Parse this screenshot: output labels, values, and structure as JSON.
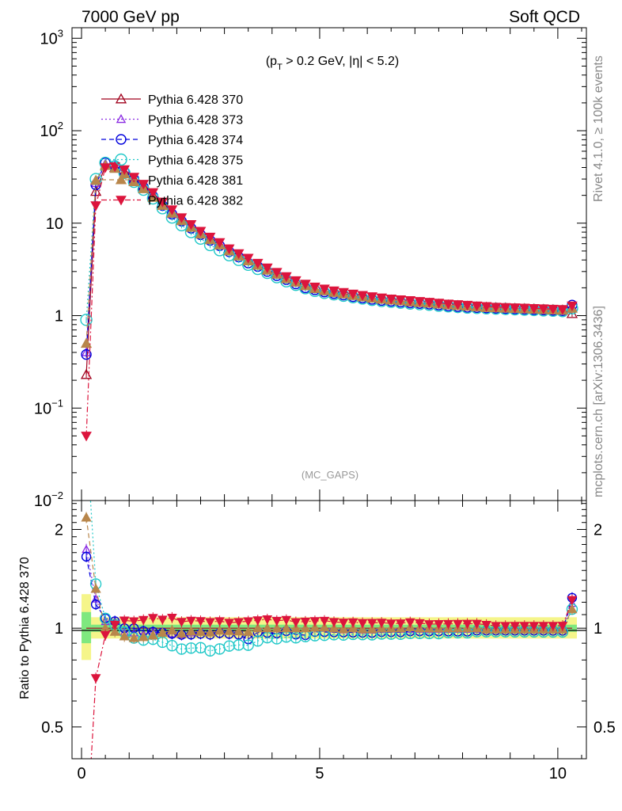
{
  "header": {
    "left": "7000 GeV pp",
    "right": "Soft QCD"
  },
  "side_labels": {
    "rivet": "Rivet 4.1.0, ≥ 100k events",
    "mcplots": "mcplots.cern.ch [arXiv:1306.3436]"
  },
  "colors": {
    "370": "#a0001c",
    "373": "#8a2be2",
    "374": "#0000dd",
    "375": "#20c8c8",
    "381": "#b8864b",
    "382": "#dc143c",
    "band_inner": "#7fe87f",
    "band_outer": "#f5f58a"
  },
  "chart_data": [
    {
      "type": "line",
      "title": "(pT > 0.2 GeV, |η| < 5.2)",
      "title_parts": {
        "open": "(p",
        "sub": "T",
        "rest": " > 0.2 GeV, |η| < 5.2)"
      },
      "watermark": "(MC_GAPS)",
      "xlabel": "",
      "ylabel": "",
      "yscale": "log",
      "xlim": [
        -0.2,
        10.6
      ],
      "ylim": [
        0.01,
        1300
      ],
      "yticks": [
        {
          "value": 1000,
          "base": "10",
          "exp": "3"
        },
        {
          "value": 100,
          "base": "10",
          "exp": "2"
        },
        {
          "value": 10,
          "label": "10"
        },
        {
          "value": 1,
          "label": "1"
        },
        {
          "value": 0.1,
          "base": "10",
          "exp": "−1"
        },
        {
          "value": 0.01,
          "base": "10",
          "exp": "−2"
        }
      ],
      "legend_position": "top-left",
      "x": [
        0.1,
        0.3,
        0.5,
        0.7,
        0.9,
        1.1,
        1.3,
        1.5,
        1.7,
        1.9,
        2.1,
        2.3,
        2.5,
        2.7,
        2.9,
        3.1,
        3.3,
        3.5,
        3.7,
        3.9,
        4.1,
        4.3,
        4.5,
        4.7,
        4.9,
        5.1,
        5.3,
        5.5,
        5.7,
        5.9,
        6.1,
        6.3,
        6.5,
        6.7,
        6.9,
        7.1,
        7.3,
        7.5,
        7.7,
        7.9,
        8.1,
        8.3,
        8.5,
        8.7,
        8.9,
        9.1,
        9.3,
        9.5,
        9.7,
        9.9,
        10.1,
        10.3
      ],
      "series": [
        {
          "name": "Pythia 6.428 370",
          "key": "370",
          "marker": "triangle-open",
          "dash": "solid",
          "values": [
            0.23,
            22,
            42,
            40,
            36,
            30,
            25,
            20,
            16,
            13,
            11,
            9.2,
            7.8,
            6.8,
            5.9,
            5.1,
            4.5,
            4.0,
            3.5,
            3.1,
            2.8,
            2.5,
            2.3,
            2.1,
            1.95,
            1.85,
            1.78,
            1.72,
            1.65,
            1.6,
            1.55,
            1.5,
            1.47,
            1.44,
            1.4,
            1.38,
            1.36,
            1.33,
            1.3,
            1.28,
            1.26,
            1.24,
            1.23,
            1.22,
            1.21,
            1.2,
            1.19,
            1.18,
            1.17,
            1.16,
            1.15,
            1.05
          ]
        },
        {
          "name": "Pythia 6.428 373",
          "key": "373",
          "marker": "triangle-open-small",
          "dash": "dot",
          "values": [
            0.4,
            27,
            44,
            42,
            35,
            29,
            24,
            19.5,
            15.5,
            12.5,
            10.5,
            8.9,
            7.6,
            6.6,
            5.8,
            5.0,
            4.4,
            3.9,
            3.5,
            3.1,
            2.8,
            2.5,
            2.3,
            2.1,
            1.95,
            1.85,
            1.77,
            1.7,
            1.64,
            1.58,
            1.53,
            1.49,
            1.46,
            1.43,
            1.39,
            1.37,
            1.35,
            1.32,
            1.29,
            1.27,
            1.25,
            1.23,
            1.22,
            1.21,
            1.2,
            1.19,
            1.18,
            1.17,
            1.16,
            1.15,
            1.14,
            1.25
          ]
        },
        {
          "name": "Pythia 6.428 374",
          "key": "374",
          "marker": "circle-open",
          "dash": "dash",
          "values": [
            0.38,
            26,
            45,
            42,
            36,
            30,
            24.5,
            19.5,
            15.5,
            12.5,
            10.5,
            8.8,
            7.5,
            6.5,
            5.7,
            4.9,
            4.3,
            3.7,
            3.4,
            3.0,
            2.7,
            2.45,
            2.2,
            2.0,
            1.9,
            1.8,
            1.73,
            1.67,
            1.6,
            1.55,
            1.5,
            1.46,
            1.43,
            1.4,
            1.37,
            1.35,
            1.33,
            1.3,
            1.27,
            1.25,
            1.23,
            1.22,
            1.21,
            1.2,
            1.19,
            1.18,
            1.17,
            1.16,
            1.15,
            1.14,
            1.13,
            1.3
          ]
        },
        {
          "name": "Pythia 6.428 375",
          "key": "375",
          "marker": "circle-open-large",
          "dash": "dot",
          "values": [
            0.9,
            30,
            45,
            41,
            35,
            28,
            23,
            18.5,
            14.5,
            11.5,
            9.5,
            8.0,
            6.8,
            5.8,
            5.1,
            4.5,
            4.0,
            3.55,
            3.2,
            2.9,
            2.6,
            2.35,
            2.15,
            1.98,
            1.85,
            1.76,
            1.7,
            1.64,
            1.58,
            1.53,
            1.48,
            1.44,
            1.41,
            1.38,
            1.35,
            1.33,
            1.31,
            1.28,
            1.26,
            1.24,
            1.22,
            1.21,
            1.2,
            1.19,
            1.18,
            1.17,
            1.16,
            1.15,
            1.14,
            1.13,
            1.12,
            1.2
          ]
        },
        {
          "name": "Pythia 6.428 381",
          "key": "381",
          "marker": "triangle-filled",
          "dash": "dash",
          "values": [
            0.5,
            29,
            42,
            39,
            34,
            28,
            23.5,
            19,
            15.5,
            12.8,
            10.6,
            9.0,
            7.6,
            6.6,
            5.8,
            5.0,
            4.4,
            3.9,
            3.5,
            3.1,
            2.8,
            2.5,
            2.3,
            2.1,
            1.96,
            1.86,
            1.78,
            1.71,
            1.65,
            1.59,
            1.54,
            1.5,
            1.47,
            1.44,
            1.41,
            1.38,
            1.36,
            1.33,
            1.3,
            1.28,
            1.26,
            1.24,
            1.22,
            1.21,
            1.2,
            1.19,
            1.18,
            1.17,
            1.16,
            1.15,
            1.14,
            1.2
          ]
        },
        {
          "name": "Pythia 6.428 382",
          "key": "382",
          "marker": "triangle-down-filled",
          "dash": "dashdot",
          "values": [
            0.05,
            15.5,
            40,
            41,
            38,
            31.5,
            26.5,
            21.5,
            17,
            14,
            11.5,
            9.7,
            8.2,
            7.1,
            6.2,
            5.3,
            4.7,
            4.2,
            3.7,
            3.3,
            2.95,
            2.65,
            2.4,
            2.2,
            2.05,
            1.95,
            1.86,
            1.79,
            1.72,
            1.66,
            1.61,
            1.56,
            1.52,
            1.49,
            1.46,
            1.43,
            1.4,
            1.37,
            1.34,
            1.32,
            1.3,
            1.28,
            1.26,
            1.24,
            1.23,
            1.22,
            1.21,
            1.2,
            1.19,
            1.18,
            1.17,
            1.28
          ]
        }
      ]
    },
    {
      "type": "line",
      "title": "",
      "xlabel": "",
      "ylabel": "Ratio to Pythia 6.428 370",
      "yscale": "log",
      "xlim": [
        -0.2,
        10.6
      ],
      "ylim": [
        0.4,
        2.45
      ],
      "yticks": [
        {
          "value": 2,
          "label": "2"
        },
        {
          "value": 1,
          "label": "1"
        },
        {
          "value": 0.5,
          "label": "0.5"
        }
      ],
      "xticks": [
        {
          "value": 0,
          "label": "0"
        },
        {
          "value": 5,
          "label": "5"
        },
        {
          "value": 10,
          "label": "10"
        }
      ],
      "band_inner": [
        {
          "x0": 0.0,
          "x1": 0.2,
          "lo": 0.9,
          "hi": 1.12
        },
        {
          "x0": 0.2,
          "x1": 10.4,
          "lo": 0.975,
          "hi": 1.025
        }
      ],
      "band_outer": [
        {
          "x0": 0.0,
          "x1": 0.2,
          "lo": 0.8,
          "hi": 1.27
        },
        {
          "x0": 0.2,
          "x1": 10.4,
          "lo": 0.93,
          "hi": 1.08
        }
      ]
    }
  ]
}
